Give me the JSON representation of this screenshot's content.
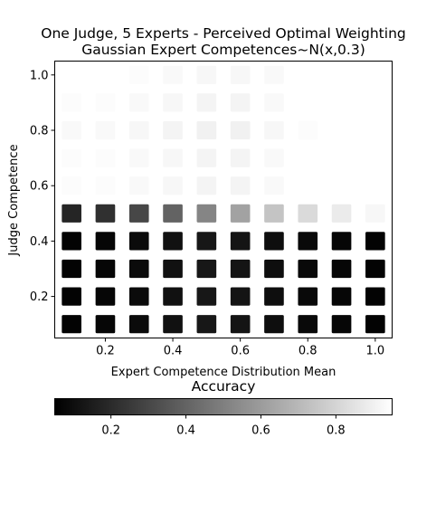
{
  "chart_data": {
    "type": "heatmap",
    "title": "One Judge, 5 Experts - Perceived Optimal Weighting",
    "subtitle": "Gaussian Expert Competences~N(x,0.3)",
    "xlabel": "Expert Competence Distribution Mean",
    "ylabel": "Judge Competence",
    "x": [
      0.1,
      0.2,
      0.3,
      0.4,
      0.5,
      0.6,
      0.7,
      0.8,
      0.9,
      1.0
    ],
    "y": [
      0.1,
      0.2,
      0.3,
      0.4,
      0.5,
      0.6,
      0.7,
      0.8,
      0.9,
      1.0
    ],
    "xlim": [
      0.05,
      1.05
    ],
    "ylim": [
      0.05,
      1.05
    ],
    "xticks": [
      "0.2",
      "0.4",
      "0.6",
      "0.8",
      "1.0"
    ],
    "xtick_values": [
      0.2,
      0.4,
      0.6,
      0.8,
      1.0
    ],
    "yticks": [
      "0.2",
      "0.4",
      "0.6",
      "0.8",
      "1.0"
    ],
    "ytick_values": [
      0.2,
      0.4,
      0.6,
      0.8,
      1.0
    ],
    "colormap": "gray",
    "colorbar": {
      "label": "Accuracy",
      "range": [
        0.05,
        0.95
      ],
      "ticks": [
        "0.2",
        "0.4",
        "0.6",
        "0.8"
      ],
      "tick_values": [
        0.2,
        0.4,
        0.6,
        0.8
      ]
    },
    "values": [
      [
        0.06,
        0.07,
        0.09,
        0.11,
        0.13,
        0.12,
        0.1,
        0.08,
        0.07,
        0.06
      ],
      [
        0.06,
        0.07,
        0.09,
        0.11,
        0.13,
        0.12,
        0.1,
        0.08,
        0.07,
        0.06
      ],
      [
        0.06,
        0.07,
        0.09,
        0.11,
        0.13,
        0.12,
        0.1,
        0.08,
        0.07,
        0.06
      ],
      [
        0.06,
        0.07,
        0.09,
        0.11,
        0.13,
        0.12,
        0.1,
        0.08,
        0.07,
        0.06
      ],
      [
        0.18,
        0.22,
        0.3,
        0.4,
        0.52,
        0.62,
        0.74,
        0.82,
        0.88,
        0.92
      ],
      [
        0.94,
        0.94,
        0.93,
        0.92,
        0.91,
        0.91,
        0.93,
        0.95,
        0.96,
        null
      ],
      [
        0.94,
        0.94,
        0.93,
        0.92,
        0.91,
        0.91,
        0.93,
        0.95,
        0.96,
        null
      ],
      [
        0.93,
        0.93,
        0.92,
        0.91,
        0.9,
        0.9,
        0.92,
        0.94,
        0.95,
        null
      ],
      [
        0.94,
        0.94,
        0.93,
        0.92,
        0.91,
        0.91,
        0.93,
        0.95,
        0.96,
        null
      ],
      [
        0.95,
        0.95,
        0.94,
        0.93,
        0.92,
        0.92,
        0.93,
        0.95,
        0.96,
        null
      ]
    ]
  }
}
